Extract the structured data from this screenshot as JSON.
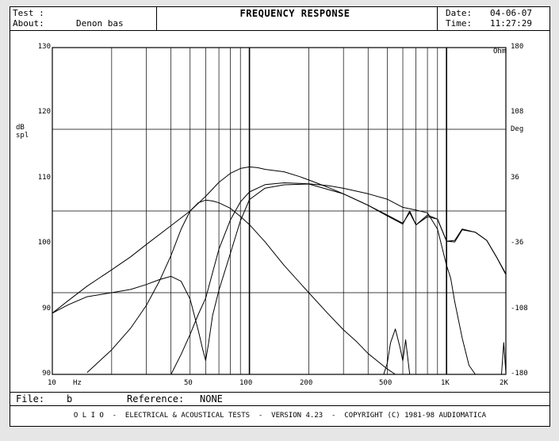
{
  "header": {
    "test_label": "Test :",
    "about_label": "About:",
    "about_value": "Denon bas",
    "title": "FREQUENCY RESPONSE",
    "date_label": "Date:",
    "date_value": "04-06-07",
    "time_label": "Time:",
    "time_value": "11:27:29"
  },
  "footer": {
    "file_label": "File:",
    "file_value": "b",
    "reference_label": "Reference:",
    "reference_value": "NONE",
    "copyright": "O L I O  -  ELECTRICAL & ACOUSTICAL TESTS  -  VERSION 4.23  -  COPYRIGHT (C) 1981-98 AUDIOMATICA"
  },
  "chart_data": {
    "type": "line",
    "title": "FREQUENCY RESPONSE",
    "x_scale": "log",
    "xlim": [
      10,
      2000
    ],
    "ylim": [
      90,
      130
    ],
    "y2lim": [
      -180,
      180
    ],
    "grid": true,
    "x_tick_labels": [
      {
        "value": 10,
        "label": "10"
      },
      {
        "value": 50,
        "label": "50"
      },
      {
        "value": 100,
        "label": "100"
      },
      {
        "value": 200,
        "label": "200"
      },
      {
        "value": 500,
        "label": "500"
      },
      {
        "value": 1000,
        "label": "1K"
      },
      {
        "value": 2000,
        "label": "2K"
      }
    ],
    "x_unit": "Hz",
    "y_ticks": [
      90,
      100,
      110,
      120,
      130
    ],
    "y2_ticks": [
      "-180",
      "-108",
      "-36",
      "36",
      "108",
      "180"
    ],
    "y_unit_line1": "dB",
    "y_unit_line2": "spl",
    "y2_unit_top": "Ohm",
    "y2_unit": "Deg",
    "series": [
      {
        "x": [
          10,
          12,
          15,
          20,
          25,
          30,
          40,
          50,
          60,
          70,
          80,
          90,
          100,
          110,
          120,
          150,
          180,
          200,
          250,
          300,
          400,
          500,
          600,
          650,
          700,
          800,
          900,
          1000,
          1100,
          1200,
          1400,
          1600,
          1800,
          2000
        ],
        "values": [
          97.5,
          99.0,
          100.8,
          102.8,
          104.4,
          105.9,
          108.2,
          110.0,
          111.8,
          113.5,
          114.6,
          115.2,
          115.4,
          115.3,
          115.1,
          114.8,
          114.2,
          113.8,
          112.9,
          112.1,
          110.7,
          109.5,
          108.5,
          109.8,
          108.3,
          109.5,
          109.0,
          106.3,
          106.4,
          107.8,
          107.4,
          106.4,
          104.3,
          102.2
        ]
      },
      {
        "x": [
          10,
          12,
          15,
          20,
          25,
          30,
          35,
          40,
          45,
          50,
          55,
          58,
          60,
          62,
          65,
          70,
          80,
          90,
          100,
          120,
          150,
          200,
          300,
          400,
          500,
          600,
          650,
          700,
          800,
          900,
          1000,
          1100,
          1200,
          1400,
          1600,
          1800,
          2000
        ],
        "values": [
          97.5,
          98.5,
          99.5,
          100.0,
          100.4,
          101.0,
          101.6,
          102.0,
          101.4,
          99.2,
          95.4,
          93.0,
          91.7,
          93.8,
          97.2,
          100.3,
          104.8,
          108.8,
          111.4,
          112.8,
          113.2,
          113.3,
          112.1,
          110.7,
          109.4,
          108.4,
          110.0,
          108.3,
          109.3,
          109.0,
          106.3,
          106.2,
          107.7,
          107.4,
          106.4,
          104.3,
          102.3
        ]
      },
      {
        "x": [
          15,
          20,
          25,
          30,
          35,
          40,
          45,
          50,
          55,
          60,
          65,
          70,
          80,
          90,
          100,
          120,
          150,
          200,
          250,
          300,
          350,
          400,
          450,
          500,
          550
        ],
        "values": [
          -178,
          -153,
          -129,
          -104,
          -77,
          -49,
          -20,
          0,
          9,
          12,
          11,
          9,
          3,
          -6,
          -15,
          -34,
          -60,
          -90,
          -113,
          -131,
          -144,
          -157,
          -166,
          -174,
          -180
        ]
      },
      {
        "x": [
          40,
          45,
          50,
          55,
          60,
          65,
          70,
          80,
          90,
          100,
          120,
          150,
          200,
          250,
          300,
          400,
          500,
          600,
          700,
          800,
          900,
          1000,
          1050,
          1100,
          1200,
          1300,
          1400
        ],
        "values": [
          -180,
          -158,
          -136,
          -114,
          -96,
          -68,
          -42,
          -10,
          10,
          21,
          29,
          31,
          30,
          28,
          25,
          19,
          13,
          4,
          1,
          -2,
          -20,
          -60,
          -74,
          -100,
          -140,
          -170,
          -180
        ]
      },
      {
        "x": [
          480,
          500,
          520,
          550,
          580,
          600,
          620,
          650
        ],
        "values": [
          -180,
          -168,
          -145,
          -130,
          -150,
          -165,
          -142,
          -180
        ]
      },
      {
        "x": [
          1900,
          1950,
          2000
        ],
        "values": [
          -180,
          -145,
          -178
        ]
      }
    ]
  }
}
